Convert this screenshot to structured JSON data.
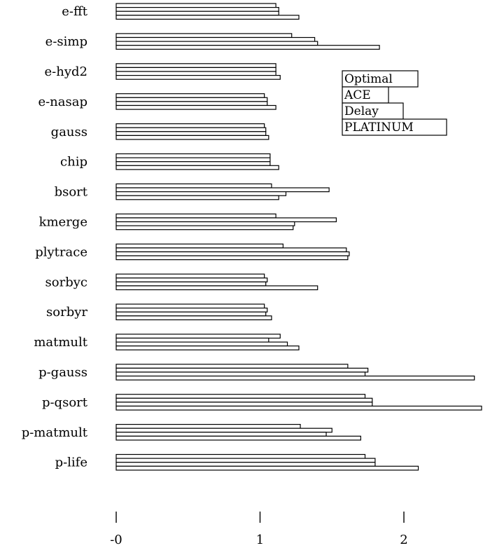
{
  "chart_data": {
    "type": "bar",
    "orientation": "horizontal",
    "categories": [
      "e-fft",
      "e-simp",
      "e-hyd2",
      "e-nasap",
      "gauss",
      "chip",
      "bsort",
      "kmerge",
      "plytrace",
      "sorbyc",
      "sorbyr",
      "matmult",
      "p-gauss",
      "p-qsort",
      "p-matmult",
      "p-life"
    ],
    "series": [
      {
        "name": "Optimal",
        "values": [
          1.11,
          1.22,
          1.11,
          1.03,
          1.03,
          1.07,
          1.08,
          1.11,
          1.16,
          1.03,
          1.03,
          1.14,
          1.61,
          1.73,
          1.28,
          1.73
        ]
      },
      {
        "name": "ACE",
        "values": [
          1.13,
          1.38,
          1.11,
          1.05,
          1.04,
          1.07,
          1.48,
          1.53,
          1.6,
          1.05,
          1.05,
          1.06,
          1.75,
          1.78,
          1.5,
          1.8
        ]
      },
      {
        "name": "Delay",
        "values": [
          1.13,
          1.4,
          1.11,
          1.05,
          1.04,
          1.07,
          1.18,
          1.24,
          1.62,
          1.04,
          1.04,
          1.19,
          1.73,
          1.78,
          1.46,
          1.8
        ]
      },
      {
        "name": "PLATINUM",
        "values": [
          1.27,
          1.83,
          1.14,
          1.11,
          1.06,
          1.13,
          1.13,
          1.23,
          1.61,
          1.4,
          1.08,
          1.27,
          2.49,
          2.54,
          1.7,
          2.1
        ]
      }
    ],
    "xticks": [
      {
        "value": 0,
        "label": "-0"
      },
      {
        "value": 1,
        "label": "1"
      },
      {
        "value": 2,
        "label": "2"
      }
    ],
    "xlim": [
      0,
      2.54
    ],
    "title": "",
    "xlabel": "",
    "ylabel": "",
    "grid": false,
    "legend_position": "upper right, inside plot",
    "bar_fill": "#ffffff",
    "bar_stroke": "#000000"
  }
}
